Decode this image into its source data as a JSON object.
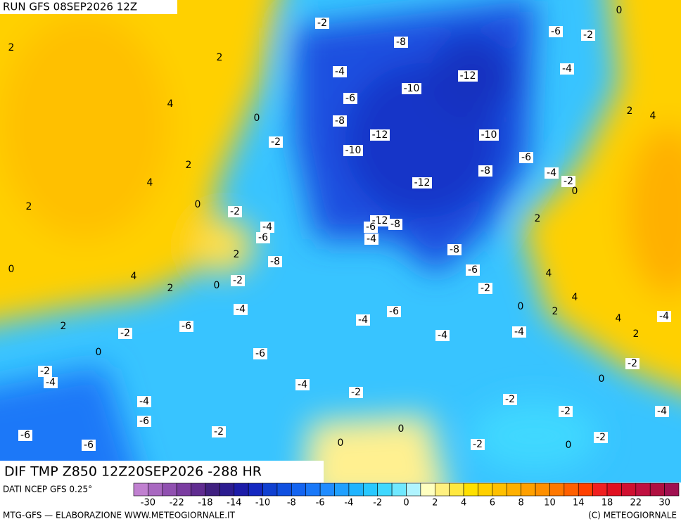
{
  "header": {
    "run": "RUN GFS 08SEP2026 12Z"
  },
  "map": {
    "field_label": "DIF TMP Z850 12Z20SEP2026 -288 HR",
    "contour_labels": [
      -2,
      -8,
      -6,
      -2,
      0,
      2,
      2,
      -4,
      -12,
      -4,
      -10,
      -6,
      4,
      2,
      4,
      -8,
      0,
      -12,
      -10,
      -2,
      -10,
      -6,
      2,
      -8,
      -4,
      -2,
      4,
      -12,
      0,
      2,
      0,
      -2,
      2,
      -4,
      -6,
      -12,
      -6,
      -8,
      -4,
      -8,
      2,
      -8,
      0,
      -6,
      4,
      4,
      2,
      0,
      -2,
      -2,
      4,
      -4,
      0,
      2,
      -6,
      -4,
      4,
      -4,
      2,
      -6,
      -2,
      -4,
      -4,
      2,
      0,
      -6,
      -2,
      -2,
      -4,
      -4,
      0,
      -2,
      -2,
      -4,
      -2,
      -4,
      -6,
      -2,
      0,
      -6,
      -2,
      -6,
      0,
      -2,
      0
    ]
  },
  "colorbar": {
    "source": "DATI NCEP GFS 0.25°",
    "ticks": [
      -30,
      -22,
      -18,
      -14,
      -10,
      -8,
      -6,
      -4,
      -2,
      0,
      2,
      4,
      6,
      8,
      10,
      14,
      18,
      22,
      30
    ],
    "colors": [
      "#c080d0",
      "#a868c0",
      "#9050b0",
      "#7a3ca0",
      "#602c90",
      "#402080",
      "#2c1c90",
      "#1c1ca8",
      "#1428c0",
      "#1040d0",
      "#1050e0",
      "#1464f0",
      "#1a78f8",
      "#208cff",
      "#20a0ff",
      "#20b4ff",
      "#28c8ff",
      "#40d8ff",
      "#70e8ff",
      "#b0f4ff",
      "#ffffc0",
      "#fff080",
      "#ffe840",
      "#ffe000",
      "#ffd000",
      "#ffc000",
      "#ffb000",
      "#ffa000",
      "#ff9000",
      "#ff7800",
      "#ff6000",
      "#ff4000",
      "#f02020",
      "#e01020",
      "#d01030",
      "#c01040",
      "#b01040",
      "#a01050"
    ]
  },
  "footer": {
    "left": "MTG-GFS — ELABORAZIONE WWW.METEOGIORNALE.IT",
    "right": "(C) METEOGIORNALE"
  }
}
